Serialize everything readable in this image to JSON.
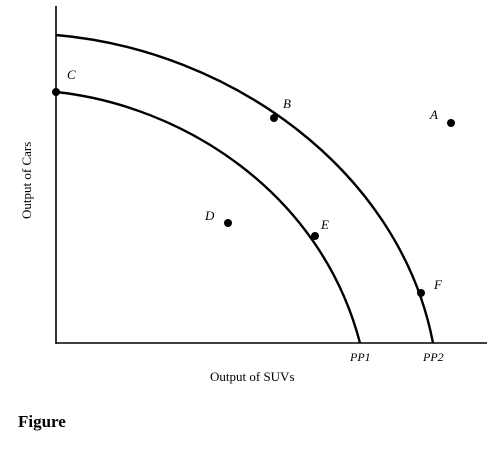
{
  "axes": {
    "x_label": "Output of SUVs",
    "y_label": "Output of Cars"
  },
  "curves": [
    {
      "name": "PP1"
    },
    {
      "name": "PP2"
    }
  ],
  "points": [
    {
      "label": "A"
    },
    {
      "label": "B"
    },
    {
      "label": "C"
    },
    {
      "label": "D"
    },
    {
      "label": "E"
    },
    {
      "label": "F"
    }
  ],
  "caption": "Figure"
}
